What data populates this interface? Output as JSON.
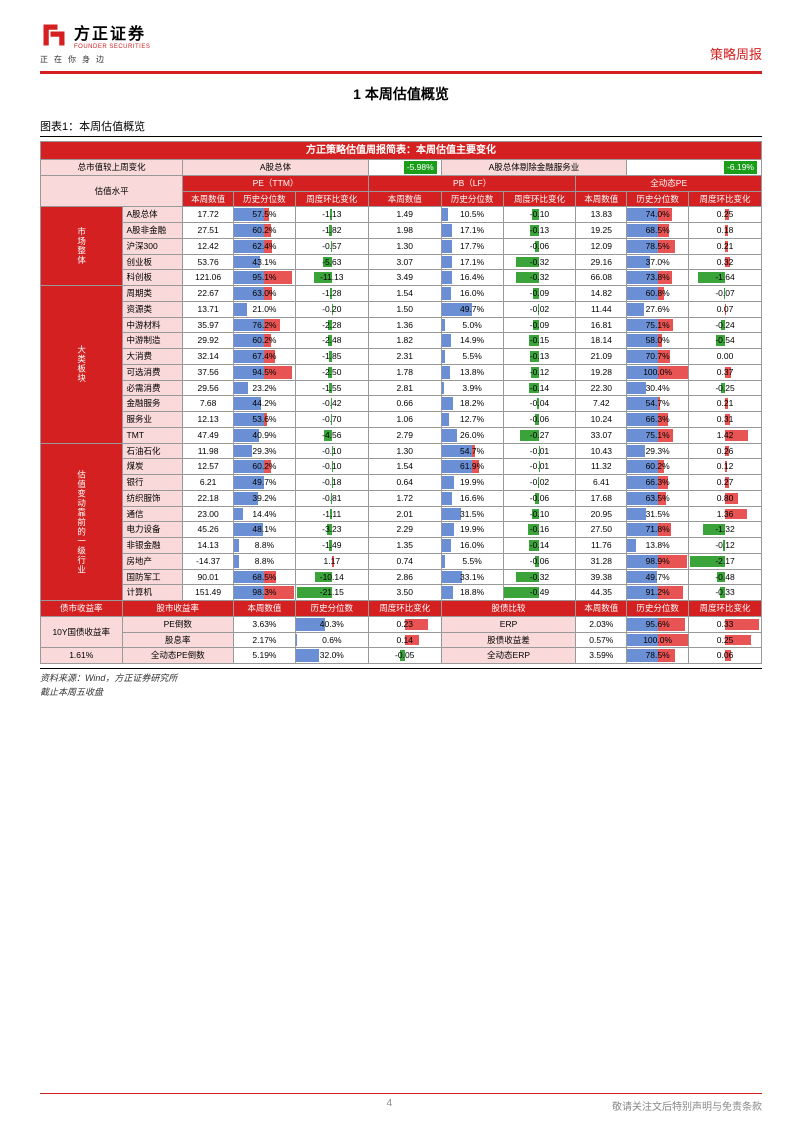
{
  "header": {
    "logo_cn": "方正证券",
    "logo_en": "FOUNDER SECURITIES",
    "tagline": "正在你身边",
    "report_type": "策略周报"
  },
  "section_title": "1 本周估值概览",
  "chart_title": "图表1：本周估值概览",
  "table": {
    "main_header": "方正策略估值周报简表：本周估值主要变化",
    "row_mktcap": {
      "label": "总市值较上周变化",
      "col1": "A股总体",
      "val1": "-5.98%",
      "col2": "A股总体剔除金融服务业",
      "val2": "-6.19%"
    },
    "group_header": {
      "label": "估值水平",
      "pe": "PE（TTM）",
      "pb": "PB（LF）",
      "dpe": "全动态PE",
      "sub": [
        "本周数值",
        "历史分位数",
        "周度环比变化",
        "本周数值",
        "历史分位数",
        "周度环比变化",
        "本周数值",
        "历史分位数",
        "周度环比变化"
      ]
    },
    "sections": [
      {
        "side": "市场整体",
        "rows": [
          {
            "name": "A股总体",
            "pe": 17.72,
            "pe_pct": 57.5,
            "pe_chg": -1.13,
            "pb": 1.49,
            "pb_pct": 10.5,
            "pb_chg": -0.1,
            "dpe": 13.83,
            "dpe_pct": 74.0,
            "dpe_chg": 0.25
          },
          {
            "name": "A股非金融",
            "pe": 27.51,
            "pe_pct": 60.2,
            "pe_chg": -1.82,
            "pb": 1.98,
            "pb_pct": 17.1,
            "pb_chg": -0.13,
            "dpe": 19.25,
            "dpe_pct": 68.5,
            "dpe_chg": 0.18
          },
          {
            "name": "沪深300",
            "pe": 12.42,
            "pe_pct": 62.4,
            "pe_chg": -0.57,
            "pb": 1.3,
            "pb_pct": 17.7,
            "pb_chg": -0.06,
            "dpe": 12.09,
            "dpe_pct": 78.5,
            "dpe_chg": 0.21
          },
          {
            "name": "创业板",
            "pe": 53.76,
            "pe_pct": 43.1,
            "pe_chg": -5.63,
            "pb": 3.07,
            "pb_pct": 17.1,
            "pb_chg": -0.32,
            "dpe": 29.16,
            "dpe_pct": 37.0,
            "dpe_chg": 0.32
          },
          {
            "name": "科创板",
            "pe": 121.06,
            "pe_pct": 95.1,
            "pe_chg": -11.13,
            "pb": 3.49,
            "pb_pct": 16.4,
            "pb_chg": -0.32,
            "dpe": 66.08,
            "dpe_pct": 73.8,
            "dpe_chg": -1.64
          }
        ]
      },
      {
        "side": "大类板块",
        "rows": [
          {
            "name": "周期类",
            "pe": 22.67,
            "pe_pct": 63.0,
            "pe_chg": -1.28,
            "pb": 1.54,
            "pb_pct": 16.0,
            "pb_chg": -0.09,
            "dpe": 14.82,
            "dpe_pct": 60.8,
            "dpe_chg": -0.07
          },
          {
            "name": "资源类",
            "pe": 13.71,
            "pe_pct": 21.0,
            "pe_chg": -0.2,
            "pb": 1.5,
            "pb_pct": 49.7,
            "pb_chg": -0.02,
            "dpe": 11.44,
            "dpe_pct": 27.6,
            "dpe_chg": 0.07
          },
          {
            "name": "中游材料",
            "pe": 35.97,
            "pe_pct": 76.2,
            "pe_chg": -2.28,
            "pb": 1.36,
            "pb_pct": 5.0,
            "pb_chg": -0.09,
            "dpe": 16.81,
            "dpe_pct": 75.1,
            "dpe_chg": -0.24
          },
          {
            "name": "中游制造",
            "pe": 29.92,
            "pe_pct": 60.2,
            "pe_chg": -2.48,
            "pb": 1.82,
            "pb_pct": 14.9,
            "pb_chg": -0.15,
            "dpe": 18.14,
            "dpe_pct": 58.0,
            "dpe_chg": -0.54
          },
          {
            "name": "大消费",
            "pe": 32.14,
            "pe_pct": 67.4,
            "pe_chg": -1.85,
            "pb": 2.31,
            "pb_pct": 5.5,
            "pb_chg": -0.13,
            "dpe": 21.09,
            "dpe_pct": 70.7,
            "dpe_chg": 0.0
          },
          {
            "name": "可选消费",
            "pe": 37.56,
            "pe_pct": 94.5,
            "pe_chg": -2.5,
            "pb": 1.78,
            "pb_pct": 13.8,
            "pb_chg": -0.12,
            "dpe": 19.28,
            "dpe_pct": 100.0,
            "dpe_chg": 0.37
          },
          {
            "name": "必需消费",
            "pe": 29.56,
            "pe_pct": 23.2,
            "pe_chg": -1.55,
            "pb": 2.81,
            "pb_pct": 3.9,
            "pb_chg": -0.14,
            "dpe": 22.3,
            "dpe_pct": 30.4,
            "dpe_chg": -0.25
          },
          {
            "name": "金融服务",
            "pe": 7.68,
            "pe_pct": 44.2,
            "pe_chg": -0.42,
            "pb": 0.66,
            "pb_pct": 18.2,
            "pb_chg": -0.04,
            "dpe": 7.42,
            "dpe_pct": 54.7,
            "dpe_chg": 0.21
          },
          {
            "name": "服务业",
            "pe": 12.13,
            "pe_pct": 53.6,
            "pe_chg": -0.7,
            "pb": 1.06,
            "pb_pct": 12.7,
            "pb_chg": -0.06,
            "dpe": 10.24,
            "dpe_pct": 66.3,
            "dpe_chg": 0.31
          },
          {
            "name": "TMT",
            "pe": 47.49,
            "pe_pct": 40.9,
            "pe_chg": -4.56,
            "pb": 2.79,
            "pb_pct": 26.0,
            "pb_chg": -0.27,
            "dpe": 33.07,
            "dpe_pct": 75.1,
            "dpe_chg": 1.42
          }
        ]
      },
      {
        "side": "估值变动靠前的一级行业",
        "rows": [
          {
            "name": "石油石化",
            "pe": 11.98,
            "pe_pct": 29.3,
            "pe_chg": -0.1,
            "pb": 1.3,
            "pb_pct": 54.7,
            "pb_chg": -0.01,
            "dpe": 10.43,
            "dpe_pct": 29.3,
            "dpe_chg": 0.26
          },
          {
            "name": "煤炭",
            "pe": 12.57,
            "pe_pct": 60.2,
            "pe_chg": -0.1,
            "pb": 1.54,
            "pb_pct": 61.9,
            "pb_chg": -0.01,
            "dpe": 11.32,
            "dpe_pct": 60.2,
            "dpe_chg": 0.12
          },
          {
            "name": "银行",
            "pe": 6.21,
            "pe_pct": 49.7,
            "pe_chg": -0.18,
            "pb": 0.64,
            "pb_pct": 19.9,
            "pb_chg": -0.02,
            "dpe": 6.41,
            "dpe_pct": 66.3,
            "dpe_chg": 0.27
          },
          {
            "name": "纺织服饰",
            "pe": 22.18,
            "pe_pct": 39.2,
            "pe_chg": -0.81,
            "pb": 1.72,
            "pb_pct": 16.6,
            "pb_chg": -0.06,
            "dpe": 17.68,
            "dpe_pct": 63.5,
            "dpe_chg": 0.8
          },
          {
            "name": "通信",
            "pe": 23.0,
            "pe_pct": 14.4,
            "pe_chg": -1.11,
            "pb": 2.01,
            "pb_pct": 31.5,
            "pb_chg": -0.1,
            "dpe": 20.95,
            "dpe_pct": 31.5,
            "dpe_chg": 1.36
          },
          {
            "name": "电力设备",
            "pe": 45.26,
            "pe_pct": 48.1,
            "pe_chg": -3.23,
            "pb": 2.29,
            "pb_pct": 19.9,
            "pb_chg": -0.16,
            "dpe": 27.5,
            "dpe_pct": 71.8,
            "dpe_chg": -1.32
          },
          {
            "name": "非银金融",
            "pe": 14.13,
            "pe_pct": 8.8,
            "pe_chg": -1.49,
            "pb": 1.35,
            "pb_pct": 16.0,
            "pb_chg": -0.14,
            "dpe": 11.76,
            "dpe_pct": 13.8,
            "dpe_chg": -0.12
          },
          {
            "name": "房地产",
            "pe": -14.37,
            "pe_pct": 8.8,
            "pe_chg": 1.17,
            "pb": 0.74,
            "pb_pct": 5.5,
            "pb_chg": -0.06,
            "dpe": 31.28,
            "dpe_pct": 98.9,
            "dpe_chg": -2.17
          },
          {
            "name": "国防军工",
            "pe": 90.01,
            "pe_pct": 68.5,
            "pe_chg": -10.14,
            "pb": 2.86,
            "pb_pct": 33.1,
            "pb_chg": -0.32,
            "dpe": 39.38,
            "dpe_pct": 49.7,
            "dpe_chg": -0.48
          },
          {
            "name": "计算机",
            "pe": 151.49,
            "pe_pct": 98.3,
            "pe_chg": -21.15,
            "pb": 3.5,
            "pb_pct": 18.8,
            "pb_chg": -0.49,
            "dpe": 44.35,
            "dpe_pct": 91.2,
            "dpe_chg": -0.33
          }
        ]
      }
    ],
    "bond_header": {
      "left": "债市收益率",
      "mid1": "股市收益率",
      "cols1": [
        "本周数值",
        "历史分位数",
        "周度环比变化"
      ],
      "mid2": "股债比较",
      "cols2": [
        "本周数值",
        "历史分位数",
        "周度环比变化"
      ]
    },
    "bond_rows": [
      {
        "left": "10Y国债收益率",
        "r1": "PE倒数",
        "v1": "3.63%",
        "p1": 40.3,
        "c1": 0.23,
        "r2": "ERP",
        "v2": "2.03%",
        "p2": 95.6,
        "c2": 0.33
      },
      {
        "left": "",
        "r1": "股息率",
        "v1": "2.17%",
        "p1": 0.6,
        "c1": 0.14,
        "r2": "股债收益差",
        "v2": "0.57%",
        "p2": 100.0,
        "c2": 0.25
      },
      {
        "left": "1.61%",
        "r1": "全动态PE倒数",
        "v1": "5.19%",
        "p1": 32.0,
        "c1": -0.05,
        "r2": "全动态ERP",
        "v2": "3.59%",
        "p2": 78.5,
        "c2": 0.06
      }
    ]
  },
  "source": {
    "line1": "资料来源：Wind，方正证券研究所",
    "line2": "截止本周五收盘"
  },
  "footer": {
    "page": "4",
    "note": "敬请关注文后特别声明与免责条款"
  },
  "colors": {
    "red": "#d42020",
    "pink": "#f9d9d9",
    "bar_blue": "#6b8fd4",
    "bar_red": "#e85454",
    "neg_green": "#3aa33a",
    "pos_red": "#e85454"
  },
  "scales": {
    "pe_chg_max": 22,
    "pb_chg_max": 0.5,
    "dpe_chg_max": 2.2,
    "bond_chg_max": 0.35
  }
}
